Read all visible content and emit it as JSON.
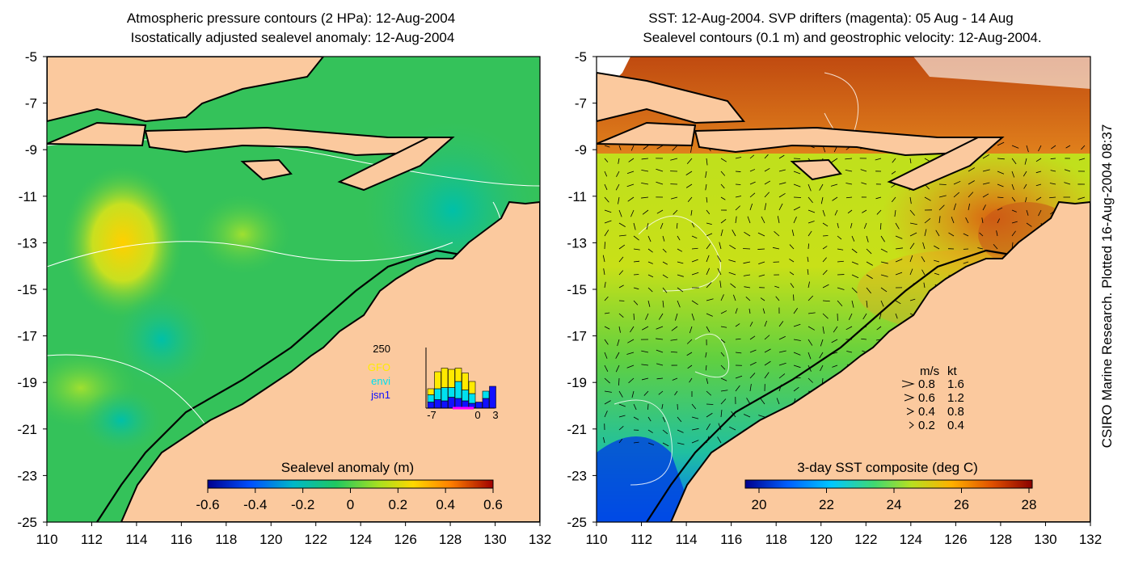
{
  "left_panel": {
    "title_line1": "Atmospheric pressure contours (2 HPa): 12-Aug-2004",
    "title_line2": "Isostatically adjusted sealevel anomaly: 12-Aug-2004",
    "colorbar_label": "Sealevel anomaly (m)",
    "colorbar_ticks": [
      "-0.6",
      "-0.4",
      "-0.2",
      "0",
      "0.2",
      "0.4",
      "0.6"
    ],
    "inset": {
      "y_max_label": "250",
      "legend": [
        {
          "name": "GFO",
          "color": "#ffea00"
        },
        {
          "name": "envi",
          "color": "#00e0f0"
        },
        {
          "name": "jsn1",
          "color": "#1010ff"
        }
      ],
      "x_ticks": [
        "-7",
        "0",
        "3"
      ],
      "bars": [
        {
          "jsn1": 25,
          "envi": 30,
          "gfo": 25
        },
        {
          "jsn1": 35,
          "envi": 45,
          "gfo": 70
        },
        {
          "jsn1": 30,
          "envi": 55,
          "gfo": 80
        },
        {
          "jsn1": 45,
          "envi": 40,
          "gfo": 75
        },
        {
          "jsn1": 40,
          "envi": 70,
          "gfo": 55
        },
        {
          "jsn1": 30,
          "envi": 45,
          "gfo": 70
        },
        {
          "jsn1": 20,
          "envi": 40,
          "gfo": 50
        },
        {
          "jsn1": 25,
          "envi": 0,
          "gfo": 0
        },
        {
          "jsn1": 40,
          "envi": 30,
          "gfo": 0
        },
        {
          "jsn1": 90,
          "envi": 0,
          "gfo": 0
        }
      ]
    }
  },
  "right_panel": {
    "title_line1": "SST: 12-Aug-2004. SVP drifters (magenta): 05 Aug - 14 Aug",
    "title_line2": "Sealevel contours (0.1 m) and geostrophic velocity: 12-Aug-2004.",
    "colorbar_label": "3-day SST composite (deg C)",
    "colorbar_ticks": [
      "20",
      "22",
      "24",
      "26",
      "28"
    ],
    "speed_legend": {
      "header_ms": "m/s",
      "header_kt": "kt",
      "rows": [
        {
          "ms": "0.8",
          "kt": "1.6"
        },
        {
          "ms": "0.6",
          "kt": "1.2"
        },
        {
          "ms": "0.4",
          "kt": "0.8"
        },
        {
          "ms": "0.2",
          "kt": "0.4"
        }
      ]
    }
  },
  "axes": {
    "lat_ticks": [
      "-5",
      "-7",
      "-9",
      "-11",
      "-13",
      "-15",
      "-17",
      "-19",
      "-21",
      "-23",
      "-25"
    ],
    "lon_ticks": [
      "110",
      "112",
      "114",
      "116",
      "118",
      "120",
      "122",
      "124",
      "126",
      "128",
      "130",
      "132"
    ]
  },
  "credit": "CSIRO Marine Research. Plotted 16-Aug-2004 08:37",
  "colors": {
    "land": "#fbc99e",
    "sla_ramp": [
      "#00008f",
      "#0070ff",
      "#00c8a0",
      "#40d040",
      "#c8e818",
      "#ffa000",
      "#c00000",
      "#800000"
    ],
    "sst_ramp": [
      "#00008f",
      "#0060ff",
      "#00c0ff",
      "#40d860",
      "#c0e020",
      "#ffb000",
      "#e05000",
      "#900000"
    ]
  }
}
